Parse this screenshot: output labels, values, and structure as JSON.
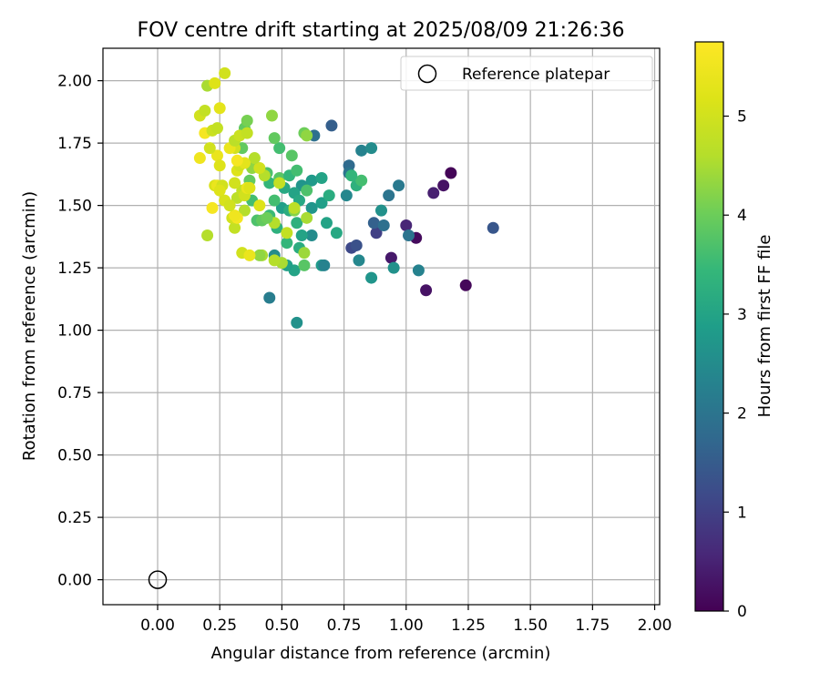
{
  "chart_data": {
    "type": "scatter",
    "title": "FOV centre drift starting at 2025/08/09 21:26:36",
    "xlabel": "Angular distance from reference (arcmin)",
    "ylabel": "Rotation from reference (arcmin)",
    "xlim": [
      -0.22,
      2.02
    ],
    "ylim": [
      -0.1,
      2.13
    ],
    "xticks": [
      0.0,
      0.25,
      0.5,
      0.75,
      1.0,
      1.25,
      1.5,
      1.75,
      2.0
    ],
    "xtick_labels": [
      "0.00",
      "0.25",
      "0.50",
      "0.75",
      "1.00",
      "1.25",
      "1.50",
      "1.75",
      "2.00"
    ],
    "yticks": [
      0.0,
      0.25,
      0.5,
      0.75,
      1.0,
      1.25,
      1.5,
      1.75,
      2.0
    ],
    "ytick_labels": [
      "0.00",
      "0.25",
      "0.50",
      "0.75",
      "1.00",
      "1.25",
      "1.50",
      "1.75",
      "2.00"
    ],
    "grid": true,
    "legend": {
      "placement": "top-right",
      "entries": [
        "Reference platepar"
      ]
    },
    "reference_point": {
      "x": 0.0,
      "y": 0.0,
      "label": "Reference platepar"
    },
    "colorbar": {
      "label": "Hours from first FF file",
      "colormap": "viridis",
      "range": [
        0,
        5.75
      ],
      "ticks": [
        0,
        1,
        2,
        3,
        4,
        5
      ],
      "tick_labels": [
        "0",
        "1",
        "2",
        "3",
        "4",
        "5"
      ]
    },
    "points": [
      {
        "x": 1.18,
        "y": 1.63,
        "c": 0.05
      },
      {
        "x": 1.15,
        "y": 1.58,
        "c": 0.25
      },
      {
        "x": 1.11,
        "y": 1.55,
        "c": 0.45
      },
      {
        "x": 1.04,
        "y": 1.37,
        "c": 0.15
      },
      {
        "x": 1.0,
        "y": 1.42,
        "c": 0.55
      },
      {
        "x": 0.94,
        "y": 1.29,
        "c": 0.35
      },
      {
        "x": 1.08,
        "y": 1.16,
        "c": 0.25
      },
      {
        "x": 1.24,
        "y": 1.18,
        "c": 0.1
      },
      {
        "x": 1.35,
        "y": 1.41,
        "c": 1.4
      },
      {
        "x": 0.88,
        "y": 1.39,
        "c": 1.0
      },
      {
        "x": 0.78,
        "y": 1.33,
        "c": 1.15
      },
      {
        "x": 0.8,
        "y": 1.34,
        "c": 1.3
      },
      {
        "x": 0.7,
        "y": 1.82,
        "c": 1.55
      },
      {
        "x": 0.77,
        "y": 1.66,
        "c": 1.8
      },
      {
        "x": 0.63,
        "y": 1.78,
        "c": 1.9
      },
      {
        "x": 0.87,
        "y": 1.43,
        "c": 1.6
      },
      {
        "x": 0.91,
        "y": 1.42,
        "c": 1.9
      },
      {
        "x": 0.93,
        "y": 1.54,
        "c": 2.0
      },
      {
        "x": 0.97,
        "y": 1.58,
        "c": 2.1
      },
      {
        "x": 1.01,
        "y": 1.38,
        "c": 2.0
      },
      {
        "x": 1.05,
        "y": 1.24,
        "c": 2.3
      },
      {
        "x": 0.95,
        "y": 1.25,
        "c": 2.6
      },
      {
        "x": 0.86,
        "y": 1.21,
        "c": 2.7
      },
      {
        "x": 0.81,
        "y": 1.28,
        "c": 2.4
      },
      {
        "x": 0.82,
        "y": 1.72,
        "c": 2.3
      },
      {
        "x": 0.86,
        "y": 1.73,
        "c": 2.5
      },
      {
        "x": 0.76,
        "y": 1.54,
        "c": 2.4
      },
      {
        "x": 0.77,
        "y": 1.63,
        "c": 2.0
      },
      {
        "x": 0.9,
        "y": 1.48,
        "c": 2.6
      },
      {
        "x": 0.66,
        "y": 1.26,
        "c": 2.8
      },
      {
        "x": 0.67,
        "y": 1.26,
        "c": 2.3
      },
      {
        "x": 0.55,
        "y": 1.24,
        "c": 3.0
      },
      {
        "x": 0.52,
        "y": 1.26,
        "c": 2.9
      },
      {
        "x": 0.56,
        "y": 1.03,
        "c": 2.6
      },
      {
        "x": 0.45,
        "y": 1.13,
        "c": 2.2
      },
      {
        "x": 0.47,
        "y": 1.3,
        "c": 2.5
      },
      {
        "x": 0.62,
        "y": 1.38,
        "c": 2.5
      },
      {
        "x": 0.62,
        "y": 1.49,
        "c": 2.7
      },
      {
        "x": 0.68,
        "y": 1.43,
        "c": 3.0
      },
      {
        "x": 0.72,
        "y": 1.39,
        "c": 3.1
      },
      {
        "x": 0.66,
        "y": 1.51,
        "c": 2.9
      },
      {
        "x": 0.69,
        "y": 1.54,
        "c": 3.2
      },
      {
        "x": 0.62,
        "y": 1.6,
        "c": 2.8
      },
      {
        "x": 0.66,
        "y": 1.61,
        "c": 3.0
      },
      {
        "x": 0.8,
        "y": 1.58,
        "c": 3.3
      },
      {
        "x": 0.82,
        "y": 1.6,
        "c": 3.6
      },
      {
        "x": 0.78,
        "y": 1.62,
        "c": 3.4
      },
      {
        "x": 0.58,
        "y": 1.58,
        "c": 2.7
      },
      {
        "x": 0.55,
        "y": 1.55,
        "c": 3.0
      },
      {
        "x": 0.51,
        "y": 1.57,
        "c": 3.1
      },
      {
        "x": 0.5,
        "y": 1.49,
        "c": 2.9
      },
      {
        "x": 0.53,
        "y": 1.48,
        "c": 3.2
      },
      {
        "x": 0.57,
        "y": 1.52,
        "c": 3.1
      },
      {
        "x": 0.56,
        "y": 1.43,
        "c": 3.3
      },
      {
        "x": 0.58,
        "y": 1.38,
        "c": 3.0
      },
      {
        "x": 0.57,
        "y": 1.33,
        "c": 3.2
      },
      {
        "x": 0.52,
        "y": 1.35,
        "c": 3.4
      },
      {
        "x": 0.48,
        "y": 1.41,
        "c": 3.3
      },
      {
        "x": 0.45,
        "y": 1.46,
        "c": 3.5
      },
      {
        "x": 0.47,
        "y": 1.52,
        "c": 3.6
      },
      {
        "x": 0.45,
        "y": 1.59,
        "c": 3.4
      },
      {
        "x": 0.44,
        "y": 1.63,
        "c": 3.7
      },
      {
        "x": 0.49,
        "y": 1.61,
        "c": 3.8
      },
      {
        "x": 0.53,
        "y": 1.62,
        "c": 3.4
      },
      {
        "x": 0.56,
        "y": 1.64,
        "c": 3.6
      },
      {
        "x": 0.6,
        "y": 1.56,
        "c": 3.7
      },
      {
        "x": 0.54,
        "y": 1.7,
        "c": 3.8
      },
      {
        "x": 0.49,
        "y": 1.73,
        "c": 3.6
      },
      {
        "x": 0.47,
        "y": 1.77,
        "c": 3.9
      },
      {
        "x": 0.59,
        "y": 1.79,
        "c": 4.0
      },
      {
        "x": 0.6,
        "y": 1.78,
        "c": 4.3
      },
      {
        "x": 0.38,
        "y": 1.52,
        "c": 3.6
      },
      {
        "x": 0.4,
        "y": 1.44,
        "c": 3.7
      },
      {
        "x": 0.42,
        "y": 1.44,
        "c": 3.9
      },
      {
        "x": 0.37,
        "y": 1.6,
        "c": 3.9
      },
      {
        "x": 0.35,
        "y": 1.81,
        "c": 3.9
      },
      {
        "x": 0.36,
        "y": 1.84,
        "c": 4.1
      },
      {
        "x": 0.34,
        "y": 1.73,
        "c": 3.9
      },
      {
        "x": 0.38,
        "y": 1.65,
        "c": 4.3
      },
      {
        "x": 0.46,
        "y": 1.86,
        "c": 4.3
      },
      {
        "x": 0.59,
        "y": 1.26,
        "c": 3.8
      },
      {
        "x": 0.59,
        "y": 1.31,
        "c": 4.4
      },
      {
        "x": 0.5,
        "y": 1.27,
        "c": 4.5
      },
      {
        "x": 0.47,
        "y": 1.28,
        "c": 4.6
      },
      {
        "x": 0.42,
        "y": 1.3,
        "c": 4.5
      },
      {
        "x": 0.41,
        "y": 1.3,
        "c": 4.3
      },
      {
        "x": 0.52,
        "y": 1.39,
        "c": 4.8
      },
      {
        "x": 0.47,
        "y": 1.43,
        "c": 4.6
      },
      {
        "x": 0.44,
        "y": 1.45,
        "c": 4.0
      },
      {
        "x": 0.55,
        "y": 1.48,
        "c": 4.2
      },
      {
        "x": 0.55,
        "y": 1.49,
        "c": 4.7
      },
      {
        "x": 0.6,
        "y": 1.45,
        "c": 4.5
      },
      {
        "x": 0.49,
        "y": 1.59,
        "c": 4.8
      },
      {
        "x": 0.43,
        "y": 1.62,
        "c": 4.6
      },
      {
        "x": 0.41,
        "y": 1.65,
        "c": 5.0
      },
      {
        "x": 0.39,
        "y": 1.69,
        "c": 4.6
      },
      {
        "x": 0.41,
        "y": 1.5,
        "c": 5.2
      },
      {
        "x": 0.35,
        "y": 1.48,
        "c": 4.6
      },
      {
        "x": 0.32,
        "y": 1.53,
        "c": 4.7
      },
      {
        "x": 0.34,
        "y": 1.56,
        "c": 4.8
      },
      {
        "x": 0.35,
        "y": 1.54,
        "c": 5.0
      },
      {
        "x": 0.31,
        "y": 1.41,
        "c": 4.8
      },
      {
        "x": 0.3,
        "y": 1.45,
        "c": 5.0
      },
      {
        "x": 0.32,
        "y": 1.45,
        "c": 5.6
      },
      {
        "x": 0.31,
        "y": 1.46,
        "c": 5.5
      },
      {
        "x": 0.34,
        "y": 1.31,
        "c": 5.0
      },
      {
        "x": 0.37,
        "y": 1.3,
        "c": 5.4
      },
      {
        "x": 0.2,
        "y": 1.38,
        "c": 4.6
      },
      {
        "x": 0.22,
        "y": 1.49,
        "c": 5.6
      },
      {
        "x": 0.23,
        "y": 1.58,
        "c": 5.1
      },
      {
        "x": 0.24,
        "y": 1.58,
        "c": 5.4
      },
      {
        "x": 0.26,
        "y": 1.58,
        "c": 5.0
      },
      {
        "x": 0.25,
        "y": 1.56,
        "c": 5.2
      },
      {
        "x": 0.27,
        "y": 1.52,
        "c": 5.1
      },
      {
        "x": 0.29,
        "y": 1.5,
        "c": 5.0
      },
      {
        "x": 0.36,
        "y": 1.57,
        "c": 5.4
      },
      {
        "x": 0.37,
        "y": 1.57,
        "c": 5.2
      },
      {
        "x": 0.31,
        "y": 1.59,
        "c": 5.0
      },
      {
        "x": 0.32,
        "y": 1.64,
        "c": 5.2
      },
      {
        "x": 0.33,
        "y": 1.66,
        "c": 5.0
      },
      {
        "x": 0.35,
        "y": 1.67,
        "c": 5.3
      },
      {
        "x": 0.32,
        "y": 1.68,
        "c": 5.6
      },
      {
        "x": 0.31,
        "y": 1.73,
        "c": 5.0
      },
      {
        "x": 0.29,
        "y": 1.73,
        "c": 5.4
      },
      {
        "x": 0.31,
        "y": 1.76,
        "c": 4.7
      },
      {
        "x": 0.33,
        "y": 1.78,
        "c": 4.9
      },
      {
        "x": 0.36,
        "y": 1.79,
        "c": 4.8
      },
      {
        "x": 0.24,
        "y": 1.7,
        "c": 5.4
      },
      {
        "x": 0.25,
        "y": 1.66,
        "c": 5.2
      },
      {
        "x": 0.21,
        "y": 1.73,
        "c": 5.0
      },
      {
        "x": 0.17,
        "y": 1.69,
        "c": 5.5
      },
      {
        "x": 0.19,
        "y": 1.79,
        "c": 5.6
      },
      {
        "x": 0.22,
        "y": 1.8,
        "c": 4.9
      },
      {
        "x": 0.24,
        "y": 1.81,
        "c": 4.8
      },
      {
        "x": 0.17,
        "y": 1.86,
        "c": 5.0
      },
      {
        "x": 0.19,
        "y": 1.88,
        "c": 4.8
      },
      {
        "x": 0.25,
        "y": 1.89,
        "c": 5.3
      },
      {
        "x": 0.2,
        "y": 1.98,
        "c": 4.5
      },
      {
        "x": 0.23,
        "y": 1.99,
        "c": 5.2
      },
      {
        "x": 0.27,
        "y": 2.03,
        "c": 5.0
      }
    ]
  }
}
